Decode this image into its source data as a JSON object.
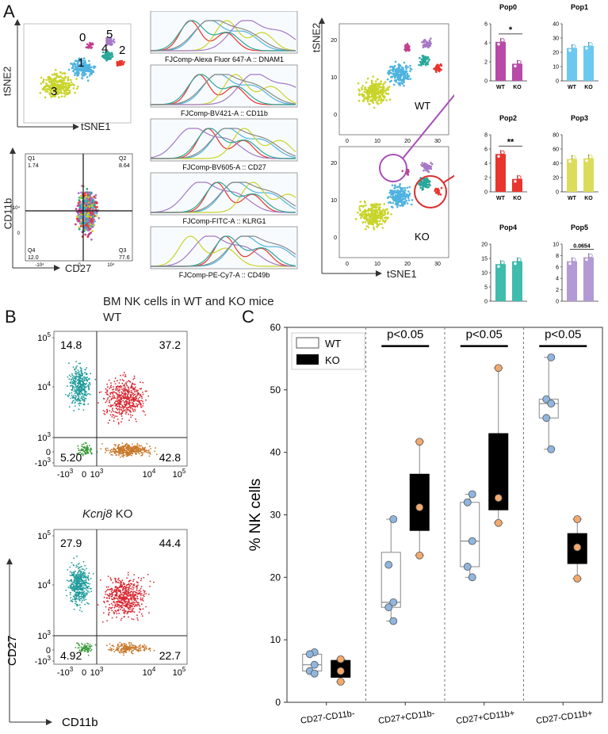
{
  "panel_labels": {
    "a": "A",
    "b": "B",
    "c": "C"
  },
  "panelA": {
    "caption": "BM NK cells in WT and KO mice",
    "tsne_top": {
      "xlabel": "tSNE1",
      "ylabel": "tSNE2",
      "clusters": [
        "0",
        "1",
        "2",
        "3",
        "4",
        "5"
      ]
    },
    "quad": {
      "ylabel": "CD11b",
      "xlabel": "CD27",
      "q1": {
        "name": "Q1",
        "value": "1.74"
      },
      "q2": {
        "name": "Q2",
        "value": "8.64"
      },
      "q3": {
        "name": "Q3",
        "value": "77.6"
      },
      "q4": {
        "name": "Q4",
        "value": "12.0"
      },
      "yticks": [
        "10⁴",
        "0"
      ],
      "xticks": [
        "-10⁴",
        "0",
        "10⁴"
      ]
    },
    "histograms": [
      "FJComp-Alexa Fluor 647-A :: DNAM1",
      "FJComp-BV421-A :: CD11b",
      "FJComp-BV605-A :: CD27",
      "FJComp-FITC-A :: KLRG1",
      "FJComp-PE-Cy7-A :: CD49b"
    ],
    "tsne_right": {
      "xlabel": "tSNE1",
      "ylabel": "tSNE2",
      "wt_label": "WT",
      "ko_label": "KO",
      "yticks": [
        "20",
        "10",
        "0"
      ],
      "xticks": [
        "0",
        "10",
        "20",
        "30"
      ]
    },
    "colors": {
      "yellow": "#c9d42a",
      "blue": "#4fb3e0",
      "teal": "#2aa79b",
      "purple": "#a678c6",
      "red": "#e8352e",
      "magenta": "#c13e8f"
    }
  },
  "chart_data": [
    {
      "type": "bar",
      "title": "Pop0",
      "categories": [
        "WT",
        "KO"
      ],
      "values": [
        4.1,
        1.8
      ],
      "ylim": [
        0,
        6
      ],
      "yticks": [
        "0",
        "2",
        "4",
        "6"
      ],
      "sig": "*",
      "color": "#b84aa8"
    },
    {
      "type": "bar",
      "title": "Pop1",
      "categories": [
        "WT",
        "KO"
      ],
      "values": [
        23,
        24.5
      ],
      "ylim": [
        0,
        40
      ],
      "yticks": [
        "0",
        "10",
        "20",
        "30",
        "40"
      ],
      "sig": "",
      "color": "#6cc8ef"
    },
    {
      "type": "bar",
      "title": "Pop2",
      "categories": [
        "WT",
        "KO"
      ],
      "values": [
        5.3,
        1.8
      ],
      "ylim": [
        0,
        8
      ],
      "yticks": [
        "0",
        "2",
        "4",
        "6",
        "8"
      ],
      "sig": "**",
      "color": "#e8352e"
    },
    {
      "type": "bar",
      "title": "Pop3",
      "categories": [
        "WT",
        "KO"
      ],
      "values": [
        46,
        47
      ],
      "ylim": [
        0,
        80
      ],
      "yticks": [
        "0",
        "20",
        "40",
        "60",
        "80"
      ],
      "sig": "",
      "color": "#dcdc5c"
    },
    {
      "type": "bar",
      "title": "Pop4",
      "categories": [
        "WT",
        "KO"
      ],
      "values": [
        13,
        14
      ],
      "ylim": [
        0,
        20
      ],
      "yticks": [
        "0",
        "5",
        "10",
        "15",
        "20"
      ],
      "sig": "",
      "color": "#3fbcae"
    },
    {
      "type": "bar",
      "title": "Pop5",
      "categories": [
        "WT",
        "KO"
      ],
      "values": [
        7.0,
        7.7
      ],
      "ylim": [
        0,
        10
      ],
      "yticks": [
        "0",
        "2",
        "4",
        "6",
        "8",
        "10"
      ],
      "sig": "0.0654",
      "color": "#b49ad4"
    },
    {
      "type": "box",
      "title": "",
      "ylabel": "% NK cells",
      "ylim": [
        0,
        60
      ],
      "yticks": [
        "0",
        "10",
        "20",
        "30",
        "40",
        "50",
        "60"
      ],
      "categories": [
        "CD27-CD11b-",
        "CD27+CD11b-",
        "CD27+CD11b+",
        "CD27-CD11b+"
      ],
      "legend": [
        "WT",
        "KO"
      ],
      "pvalue": "p<0.05",
      "series": [
        {
          "name": "WT",
          "boxes": [
            {
              "min": 4.6,
              "q1": 5.0,
              "med": 6.0,
              "q3": 7.7,
              "max": 8.0,
              "points": [
                8.0,
                7.7,
                6.0,
                5.0,
                4.6
              ]
            },
            {
              "min": 13.0,
              "q1": 15.2,
              "med": 16.0,
              "q3": 24.0,
              "max": 29.3,
              "points": [
                29.3,
                22.0,
                16.0,
                15.2,
                13.0
              ]
            },
            {
              "min": 20.0,
              "q1": 21.7,
              "med": 25.8,
              "q3": 32.0,
              "max": 33.3,
              "points": [
                33.3,
                32.0,
                25.8,
                21.7,
                20.0
              ]
            },
            {
              "min": 40.5,
              "q1": 45.5,
              "med": 47.8,
              "q3": 48.5,
              "max": 55.2,
              "points": [
                55.2,
                48.5,
                47.8,
                45.5,
                40.5
              ]
            }
          ]
        },
        {
          "name": "KO",
          "boxes": [
            {
              "min": 3.3,
              "q1": 4.0,
              "med": 5.0,
              "q3": 6.7,
              "max": 6.9,
              "points": [
                6.9,
                5.0,
                3.3
              ]
            },
            {
              "min": 23.5,
              "q1": 27.5,
              "med": 31.0,
              "q3": 36.5,
              "max": 41.7,
              "points": [
                41.7,
                31.2,
                23.5
              ]
            },
            {
              "min": 28.7,
              "q1": 30.8,
              "med": 32.5,
              "q3": 43.0,
              "max": 53.5,
              "points": [
                53.5,
                32.7,
                28.7
              ]
            },
            {
              "min": 19.8,
              "q1": 22.2,
              "med": 24.8,
              "q3": 27.0,
              "max": 29.3,
              "points": [
                29.3,
                24.8,
                19.8
              ]
            }
          ]
        }
      ]
    }
  ],
  "panelB": {
    "wt": {
      "title": "WT",
      "q1": "14.8",
      "q2": "37.2",
      "q3": "42.8",
      "q4": "5.20"
    },
    "ko": {
      "title_italic": "Kcnj8",
      "title_rest": " KO",
      "q1": "27.9",
      "q2": "44.4",
      "q3": "22.7",
      "q4": "4.92"
    },
    "ylabel": "CD27",
    "xlabel": "CD11b",
    "ytick_labels": [
      {
        "b": "10",
        "e": "5"
      },
      {
        "b": "10",
        "e": "4"
      },
      {
        "b": "10",
        "e": "3"
      },
      {
        "b": "0",
        "e": ""
      },
      {
        "b": "-10",
        "e": "3"
      }
    ],
    "xtick_labels": [
      {
        "b": "-10",
        "e": "3"
      },
      {
        "b": "0",
        "e": ""
      },
      {
        "b": "10",
        "e": "3"
      },
      {
        "b": "10",
        "e": "4"
      },
      {
        "b": "10",
        "e": "5"
      }
    ]
  }
}
